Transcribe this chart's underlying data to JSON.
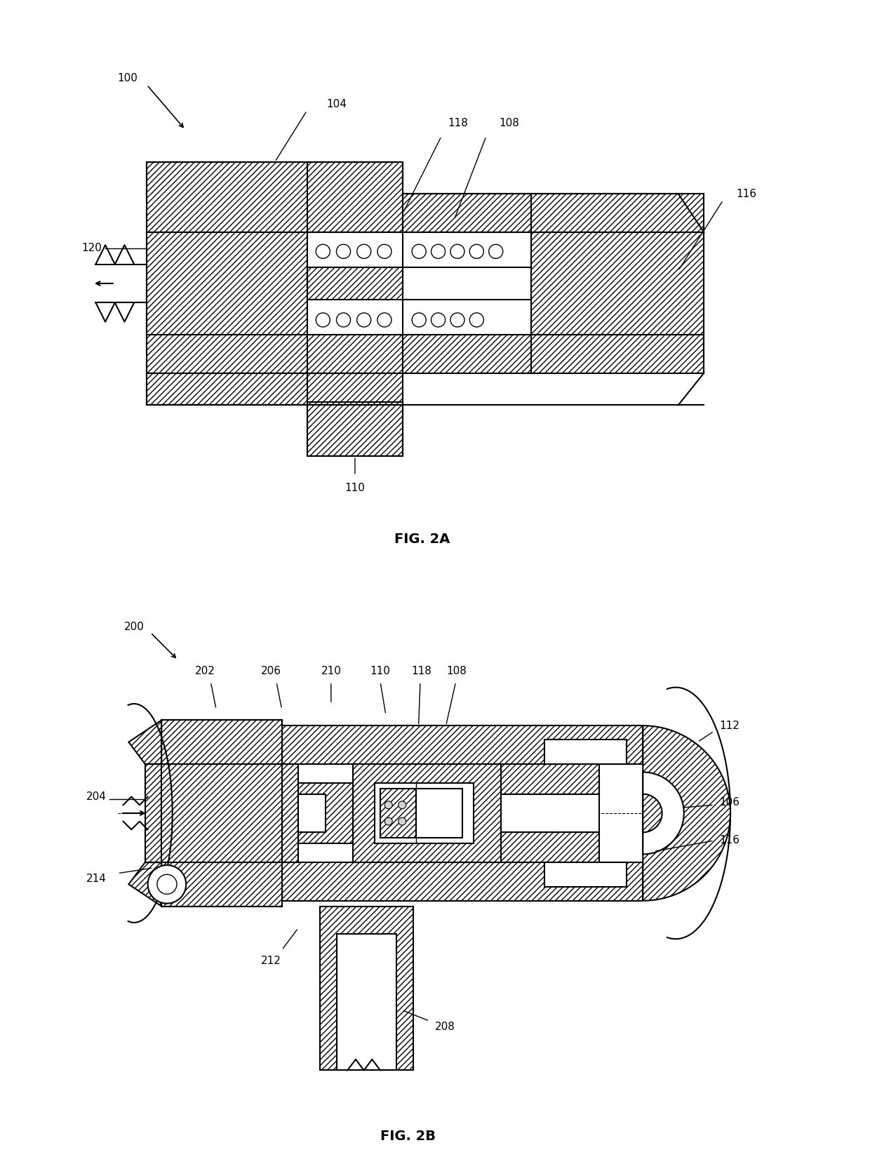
{
  "fig_label_2a": "FIG. 2A",
  "fig_label_2b": "FIG. 2B",
  "bg_color": "#ffffff",
  "lw": 1.5,
  "font_size": 11,
  "hatch": "////"
}
